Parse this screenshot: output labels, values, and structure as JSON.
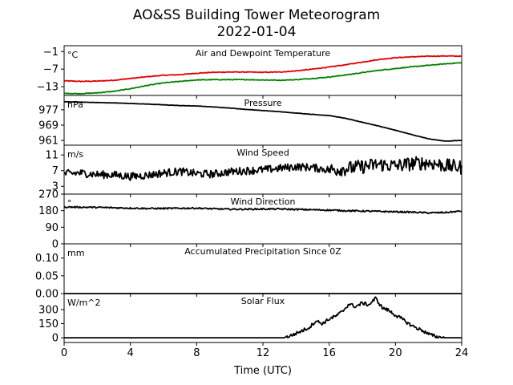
{
  "title_line1": "AO&SS Building Tower Meteorogram",
  "title_line2": "2022-01-04",
  "xlabel": "Time (UTC)",
  "colors": {
    "temperature": "#e00000",
    "dewpoint": "#008000",
    "line": "#000000"
  },
  "chart_data": [
    {
      "type": "line",
      "title": "Air and Dewpoint Temperature",
      "unit": "°C",
      "xlim": [
        0,
        24
      ],
      "ylim": [
        -16,
        1
      ],
      "yticks": [
        -1,
        -7,
        -13
      ],
      "ytick_labels": [
        "−1",
        "−7",
        "−13"
      ],
      "x": [
        0,
        1,
        2,
        3,
        4,
        5,
        6,
        7,
        8,
        9,
        10,
        11,
        12,
        13,
        14,
        15,
        16,
        17,
        18,
        19,
        20,
        21,
        22,
        23,
        24
      ],
      "series": [
        {
          "name": "Air Temperature",
          "color": "#e00000",
          "values": [
            -11.0,
            -11.2,
            -11.1,
            -10.8,
            -10.2,
            -9.6,
            -9.1,
            -8.9,
            -8.4,
            -8.1,
            -8.0,
            -8.0,
            -8.1,
            -8.0,
            -7.6,
            -7.0,
            -6.3,
            -5.5,
            -4.6,
            -3.7,
            -3.1,
            -2.8,
            -2.6,
            -2.5,
            -2.6
          ]
        },
        {
          "name": "Dewpoint Temperature",
          "color": "#008000",
          "values": [
            -15.3,
            -15.4,
            -15.1,
            -14.6,
            -13.7,
            -12.6,
            -11.7,
            -11.2,
            -10.7,
            -10.6,
            -10.6,
            -10.6,
            -10.7,
            -10.8,
            -10.6,
            -10.2,
            -9.7,
            -9.0,
            -8.2,
            -7.4,
            -6.8,
            -6.2,
            -5.7,
            -5.2,
            -4.8
          ]
        }
      ]
    },
    {
      "type": "line",
      "title": "Pressure",
      "unit": "hPa",
      "xlim": [
        0,
        24
      ],
      "ylim": [
        958.5,
        984.5
      ],
      "yticks": [
        977,
        969,
        961
      ],
      "ytick_labels": [
        "977",
        "969",
        "961"
      ],
      "x": [
        0,
        1,
        2,
        3,
        4,
        5,
        6,
        7,
        8,
        9,
        10,
        11,
        12,
        13,
        14,
        15,
        16,
        17,
        18,
        19,
        20,
        21,
        22,
        23,
        24
      ],
      "series": [
        {
          "name": "Pressure",
          "color": "#000000",
          "values": [
            981.2,
            981.0,
            980.8,
            980.6,
            980.3,
            980.0,
            979.6,
            979.2,
            979.0,
            978.5,
            977.9,
            977.2,
            976.6,
            976.0,
            975.3,
            974.6,
            974.0,
            972.5,
            970.5,
            968.5,
            966.3,
            964.0,
            961.8,
            960.6,
            961.0
          ]
        }
      ]
    },
    {
      "type": "line",
      "title": "Wind Speed",
      "unit": "m/s",
      "xlim": [
        0,
        24
      ],
      "ylim": [
        1,
        13.5
      ],
      "yticks": [
        11,
        7,
        3
      ],
      "ytick_labels": [
        "11",
        "7",
        "3"
      ],
      "x": [
        0,
        1,
        2,
        3,
        4,
        5,
        6,
        7,
        8,
        9,
        10,
        11,
        12,
        13,
        14,
        15,
        16,
        17,
        18,
        19,
        20,
        21,
        22,
        23,
        24
      ],
      "series": [
        {
          "name": "Wind Speed",
          "color": "#000000",
          "values": [
            6.2,
            6.4,
            6.0,
            5.9,
            5.5,
            5.8,
            6.4,
            6.8,
            6.2,
            6.1,
            6.7,
            7.0,
            7.2,
            7.6,
            8.0,
            7.8,
            7.2,
            7.5,
            8.0,
            8.6,
            8.2,
            8.8,
            9.0,
            8.3,
            7.8
          ]
        }
      ]
    },
    {
      "type": "line",
      "title": "Wind Direction",
      "unit": "°",
      "xlim": [
        0,
        24
      ],
      "ylim": [
        0,
        270
      ],
      "yticks": [
        270,
        180,
        90,
        0
      ],
      "ytick_labels": [
        "270",
        "180",
        "90",
        "0"
      ],
      "x": [
        0,
        1,
        2,
        3,
        4,
        5,
        6,
        7,
        8,
        9,
        10,
        11,
        12,
        13,
        14,
        15,
        16,
        17,
        18,
        19,
        20,
        21,
        22,
        23,
        24
      ],
      "series": [
        {
          "name": "Wind Direction",
          "color": "#000000",
          "values": [
            200,
            199,
            198,
            196,
            194,
            192,
            192,
            193,
            194,
            190,
            188,
            188,
            189,
            189,
            187,
            185,
            183,
            180,
            178,
            176,
            174,
            172,
            168,
            170,
            178
          ]
        }
      ]
    },
    {
      "type": "line",
      "title": "Accumulated Precipitation Since 0Z",
      "unit": "mm",
      "xlim": [
        0,
        24
      ],
      "ylim": [
        0,
        0.14
      ],
      "yticks": [
        0.1,
        0.05,
        0.0
      ],
      "ytick_labels": [
        "0.10",
        "0.05",
        "0.00"
      ],
      "x": [
        0,
        24
      ],
      "series": [
        {
          "name": "Accumulated Precipitation",
          "color": "#000000",
          "values": [
            0.0,
            0.0
          ]
        }
      ]
    },
    {
      "type": "line",
      "title": "Solar Flux",
      "unit": "W/m^2",
      "xlim": [
        0,
        24
      ],
      "ylim": [
        -50,
        470
      ],
      "yticks": [
        300,
        150,
        0
      ],
      "ytick_labels": [
        "300",
        "150",
        "0"
      ],
      "xticks": [
        0,
        4,
        8,
        12,
        16,
        20,
        24
      ],
      "xtick_labels": [
        "0",
        "4",
        "8",
        "12",
        "16",
        "20",
        "24"
      ],
      "x": [
        0,
        13.3,
        13.8,
        14.3,
        14.8,
        15.2,
        15.6,
        16.0,
        16.4,
        16.8,
        17.2,
        17.6,
        18.0,
        18.4,
        18.8,
        19.2,
        19.6,
        20.0,
        20.4,
        20.8,
        21.2,
        21.6,
        22.0,
        22.5,
        23.0,
        24.0
      ],
      "series": [
        {
          "name": "Solar Flux",
          "color": "#000000",
          "values": [
            0,
            0,
            30,
            70,
            110,
            180,
            150,
            200,
            230,
            280,
            360,
            330,
            370,
            350,
            420,
            320,
            290,
            240,
            200,
            150,
            110,
            80,
            40,
            10,
            0,
            0
          ]
        }
      ]
    }
  ]
}
